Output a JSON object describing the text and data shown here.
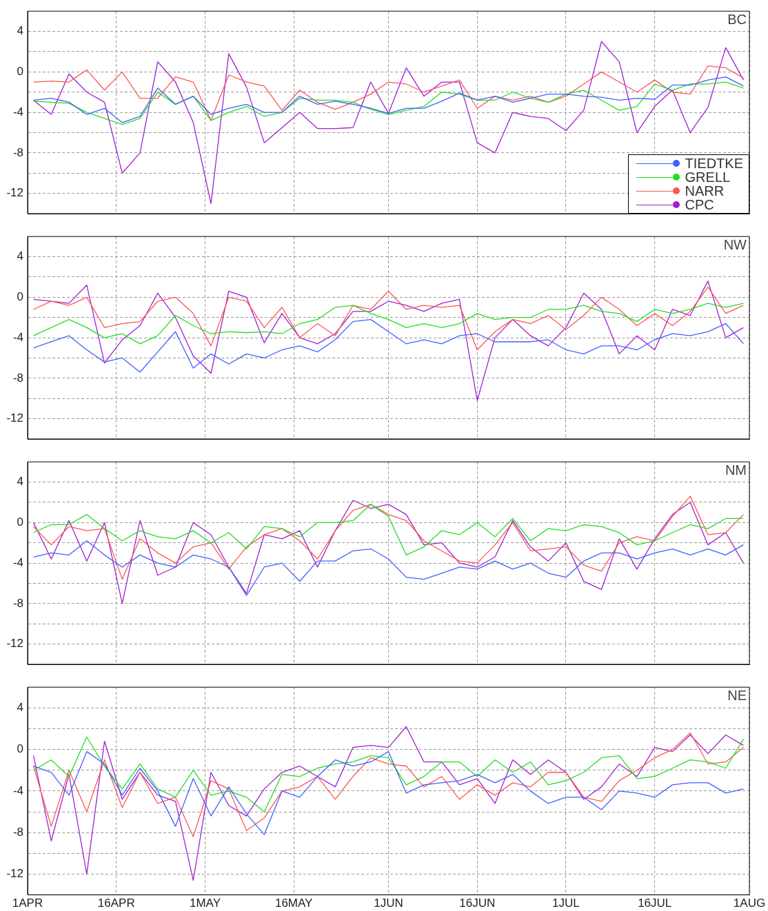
{
  "chart_data": [
    {
      "type": "line",
      "title": "BC",
      "legend": "bottom right",
      "grid": true,
      "tick_labels": "y",
      "ylim": [
        -14,
        6
      ],
      "yticks": [
        4,
        {
          "value": 2,
          "label": null
        },
        0,
        {
          "value": -2,
          "label": null
        },
        -4,
        {
          "value": -6,
          "label": null
        },
        -8,
        {
          "value": -10,
          "label": null
        },
        -12
      ],
      "xlim": [
        "--04-01",
        "--08-01"
      ],
      "xticks": [
        {
          "value": "--04-01",
          "label": "1APR"
        },
        {
          "value": "--04-16",
          "label": "16APR"
        },
        {
          "value": "--05-01",
          "label": "1MAY"
        },
        {
          "value": "--05-16",
          "label": "16MAY"
        },
        {
          "value": "--06-01",
          "label": "1JUN"
        },
        {
          "value": "--06-16",
          "label": "16JUN"
        },
        {
          "value": "--07-01",
          "label": "1JUL"
        },
        {
          "value": "--07-16",
          "label": "16JUL"
        },
        {
          "value": "--08-01",
          "label": "1AUG"
        }
      ],
      "x": [
        "--04-02",
        "--04-05",
        "--04-08",
        "--04-11",
        "--04-14",
        "--04-17",
        "--04-20",
        "--04-23",
        "--04-26",
        "--04-29",
        "--05-02",
        "--05-05",
        "--05-08",
        "--05-11",
        "--05-14",
        "--05-17",
        "--05-20",
        "--05-23",
        "--05-26",
        "--05-29",
        "--06-01",
        "--06-04",
        "--06-07",
        "--06-10",
        "--06-13",
        "--06-16",
        "--06-19",
        "--06-22",
        "--06-25",
        "--06-28",
        "--07-01",
        "--07-04",
        "--07-07",
        "--07-10",
        "--07-13",
        "--07-16",
        "--07-19",
        "--07-22",
        "--07-25",
        "--07-28",
        "--07-31"
      ],
      "series": [
        {
          "name": "TIEDTKE",
          "color": "#4060ff",
          "values": [
            -2.8,
            -2.6,
            -3.0,
            -4.2,
            -3.6,
            -5.0,
            -4.4,
            -1.6,
            -3.2,
            -2.4,
            -4.2,
            -3.6,
            -3.2,
            -4.0,
            -4.0,
            -2.4,
            -3.2,
            -2.9,
            -3.2,
            -3.6,
            -4.1,
            -3.6,
            -3.6,
            -2.9,
            -2.1,
            -2.8,
            -2.4,
            -3.0,
            -2.6,
            -2.2,
            -2.2,
            -2.4,
            -2.5,
            -2.8,
            -2.6,
            -2.7,
            -1.3,
            -1.3,
            -0.8,
            -0.5,
            -1.4
          ]
        },
        {
          "name": "GRELL",
          "color": "#22dd22",
          "values": [
            -2.9,
            -3.0,
            -3.1,
            -4.0,
            -4.6,
            -5.2,
            -4.6,
            -2.0,
            -3.2,
            -2.4,
            -4.8,
            -4.0,
            -3.4,
            -4.4,
            -4.0,
            -2.6,
            -2.8,
            -2.8,
            -3.0,
            -3.7,
            -4.2,
            -3.8,
            -3.4,
            -2.0,
            -2.2,
            -2.8,
            -2.8,
            -2.0,
            -2.6,
            -3.0,
            -2.2,
            -1.8,
            -2.8,
            -3.8,
            -3.4,
            -1.2,
            -1.8,
            -1.2,
            -1.2,
            -1.0,
            -1.6
          ]
        },
        {
          "name": "NARR",
          "color": "#ff5555",
          "values": [
            -1.0,
            -0.9,
            -1.0,
            0.2,
            -1.8,
            0.0,
            -2.6,
            -2.6,
            -0.5,
            -1.0,
            -4.8,
            -0.3,
            -1.0,
            -1.4,
            -3.8,
            -1.8,
            -3.0,
            -3.7,
            -3.0,
            -2.2,
            -1.0,
            -1.2,
            -2.0,
            -1.4,
            -0.8,
            -3.6,
            -2.4,
            -2.8,
            -2.4,
            -3.0,
            -2.4,
            -1.2,
            0.0,
            -1.0,
            -2.0,
            -0.8,
            -2.0,
            -2.2,
            0.6,
            0.4,
            -0.6
          ]
        },
        {
          "name": "CPC",
          "color": "#a020d0",
          "values": [
            -2.8,
            -4.2,
            -0.2,
            -2.0,
            -3.0,
            -10.0,
            -8.0,
            1.0,
            -1.0,
            -5.0,
            -13.0,
            1.8,
            -1.5,
            -7.0,
            -5.5,
            -4.0,
            -5.6,
            -5.6,
            -5.5,
            -1.0,
            -4.1,
            0.4,
            -2.4,
            -1.0,
            -1.0,
            -7.0,
            -8.0,
            -4.0,
            -4.4,
            -4.6,
            -5.8,
            -3.8,
            3.0,
            1.0,
            -6.0,
            -3.4,
            -1.8,
            -6.0,
            -3.5,
            2.4,
            -0.8
          ]
        }
      ]
    },
    {
      "type": "line",
      "title": "NW",
      "legend": false,
      "grid": true,
      "tick_labels": "y",
      "ylim": [
        -14,
        6
      ],
      "yticks": [
        4,
        {
          "value": 2,
          "label": null
        },
        0,
        {
          "value": -2,
          "label": null
        },
        -4,
        {
          "value": -6,
          "label": null
        },
        -8,
        {
          "value": -10,
          "label": null
        },
        -12
      ],
      "xlim": [
        "--04-01",
        "--08-01"
      ],
      "xticks": [
        {
          "value": "--04-01",
          "label": "1APR"
        },
        {
          "value": "--04-16",
          "label": "16APR"
        },
        {
          "value": "--05-01",
          "label": "1MAY"
        },
        {
          "value": "--05-16",
          "label": "16MAY"
        },
        {
          "value": "--06-01",
          "label": "1JUN"
        },
        {
          "value": "--06-16",
          "label": "16JUN"
        },
        {
          "value": "--07-01",
          "label": "1JUL"
        },
        {
          "value": "--07-16",
          "label": "16JUL"
        },
        {
          "value": "--08-01",
          "label": "1AUG"
        }
      ],
      "x": [
        "--04-02",
        "--04-05",
        "--04-08",
        "--04-11",
        "--04-14",
        "--04-17",
        "--04-20",
        "--04-23",
        "--04-26",
        "--04-29",
        "--05-02",
        "--05-05",
        "--05-08",
        "--05-11",
        "--05-14",
        "--05-17",
        "--05-20",
        "--05-23",
        "--05-26",
        "--05-29",
        "--06-01",
        "--06-04",
        "--06-07",
        "--06-10",
        "--06-13",
        "--06-16",
        "--06-19",
        "--06-22",
        "--06-25",
        "--06-28",
        "--07-01",
        "--07-04",
        "--07-07",
        "--07-10",
        "--07-13",
        "--07-16",
        "--07-19",
        "--07-22",
        "--07-25",
        "--07-28",
        "--07-31"
      ],
      "series": [
        {
          "color": "#4060ff",
          "values": [
            -5.0,
            -4.4,
            -3.8,
            -5.2,
            -6.4,
            -6.0,
            -7.4,
            -5.4,
            -3.4,
            -7.0,
            -5.6,
            -6.6,
            -5.6,
            -6.0,
            -5.2,
            -4.8,
            -5.4,
            -4.2,
            -2.4,
            -2.2,
            -3.4,
            -4.6,
            -4.2,
            -4.6,
            -3.8,
            -3.6,
            -4.4,
            -4.4,
            -4.4,
            -4.2,
            -5.2,
            -5.6,
            -4.8,
            -4.8,
            -5.2,
            -4.2,
            -3.6,
            -3.8,
            -3.4,
            -2.6,
            -4.6
          ]
        },
        {
          "color": "#22dd22",
          "values": [
            -3.8,
            -3.0,
            -2.2,
            -3.0,
            -4.0,
            -3.6,
            -4.6,
            -3.8,
            -1.8,
            -2.8,
            -3.6,
            -3.4,
            -3.5,
            -3.4,
            -3.6,
            -2.6,
            -2.2,
            -1.0,
            -0.8,
            -1.6,
            -2.2,
            -3.0,
            -2.6,
            -3.0,
            -2.6,
            -1.6,
            -2.2,
            -2.0,
            -2.0,
            -1.2,
            -1.2,
            -0.8,
            -1.4,
            -1.6,
            -2.4,
            -1.2,
            -1.6,
            -1.2,
            -0.6,
            -1.0,
            -0.6
          ]
        },
        {
          "color": "#ff5555",
          "values": [
            -1.2,
            -0.4,
            -0.8,
            0.0,
            -3.0,
            -2.6,
            -2.4,
            -0.4,
            0.0,
            -1.6,
            -4.8,
            0.0,
            -0.4,
            -3.0,
            -1.0,
            -4.0,
            -2.6,
            -3.8,
            -0.8,
            -1.2,
            0.6,
            -1.2,
            -0.8,
            -1.0,
            -0.8,
            -5.2,
            -3.4,
            -2.2,
            -2.6,
            -1.8,
            -3.2,
            -1.8,
            0.0,
            -1.2,
            -2.8,
            -1.6,
            -2.8,
            -1.4,
            1.0,
            -1.6,
            -0.8
          ]
        },
        {
          "color": "#a020d0",
          "values": [
            -0.2,
            -0.4,
            -0.6,
            1.2,
            -6.5,
            -4.2,
            -2.8,
            0.4,
            -2.0,
            -5.8,
            -7.5,
            0.6,
            0.0,
            -4.5,
            -1.6,
            -4.0,
            -4.6,
            -3.6,
            -1.4,
            -1.4,
            -0.4,
            -0.8,
            -1.4,
            -0.6,
            -0.2,
            -10.2,
            -4.0,
            -2.2,
            -3.8,
            -4.8,
            -3.0,
            0.4,
            -1.2,
            -5.6,
            -3.8,
            -5.2,
            -1.2,
            -1.8,
            1.6,
            -4.0,
            -3.0
          ]
        }
      ]
    },
    {
      "type": "line",
      "title": "NM",
      "legend": false,
      "grid": true,
      "tick_labels": "y",
      "ylim": [
        -14,
        6
      ],
      "yticks": [
        4,
        {
          "value": 2,
          "label": null
        },
        0,
        {
          "value": -2,
          "label": null
        },
        -4,
        {
          "value": -6,
          "label": null
        },
        -8,
        {
          "value": -10,
          "label": null
        },
        -12
      ],
      "xlim": [
        "--04-01",
        "--08-01"
      ],
      "xticks": [
        {
          "value": "--04-01",
          "label": "1APR"
        },
        {
          "value": "--04-16",
          "label": "16APR"
        },
        {
          "value": "--05-01",
          "label": "1MAY"
        },
        {
          "value": "--05-16",
          "label": "16MAY"
        },
        {
          "value": "--06-01",
          "label": "1JUN"
        },
        {
          "value": "--06-16",
          "label": "16JUN"
        },
        {
          "value": "--07-01",
          "label": "1JUL"
        },
        {
          "value": "--07-16",
          "label": "16JUL"
        },
        {
          "value": "--08-01",
          "label": "1AUG"
        }
      ],
      "x": [
        "--04-02",
        "--04-05",
        "--04-08",
        "--04-11",
        "--04-14",
        "--04-17",
        "--04-20",
        "--04-23",
        "--04-26",
        "--04-29",
        "--05-02",
        "--05-05",
        "--05-08",
        "--05-11",
        "--05-14",
        "--05-17",
        "--05-20",
        "--05-23",
        "--05-26",
        "--05-29",
        "--06-01",
        "--06-04",
        "--06-07",
        "--06-10",
        "--06-13",
        "--06-16",
        "--06-19",
        "--06-22",
        "--06-25",
        "--06-28",
        "--07-01",
        "--07-04",
        "--07-07",
        "--07-10",
        "--07-13",
        "--07-16",
        "--07-19",
        "--07-22",
        "--07-25",
        "--07-28",
        "--07-31"
      ],
      "series": [
        {
          "color": "#4060ff",
          "values": [
            -3.4,
            -3.0,
            -3.2,
            -1.8,
            -3.2,
            -4.4,
            -3.2,
            -4.0,
            -4.4,
            -3.2,
            -3.6,
            -4.4,
            -7.2,
            -4.4,
            -4.0,
            -5.8,
            -3.8,
            -3.8,
            -2.8,
            -2.6,
            -3.6,
            -5.4,
            -5.6,
            -5.0,
            -4.4,
            -4.6,
            -3.8,
            -4.6,
            -4.0,
            -5.0,
            -5.4,
            -3.8,
            -3.0,
            -3.0,
            -3.6,
            -3.0,
            -2.6,
            -3.2,
            -2.6,
            -3.2,
            -2.2
          ]
        },
        {
          "color": "#22dd22",
          "values": [
            -1.0,
            -0.2,
            -0.2,
            0.8,
            -0.6,
            -1.8,
            -0.8,
            -1.4,
            -1.6,
            -0.8,
            -2.0,
            -1.0,
            -2.6,
            -0.4,
            -0.6,
            -1.4,
            0.0,
            0.0,
            0.2,
            1.8,
            0.6,
            -3.2,
            -2.4,
            -0.8,
            -1.2,
            0.0,
            -1.4,
            0.4,
            -1.8,
            -0.6,
            -0.8,
            -0.2,
            -0.4,
            -1.0,
            -2.2,
            -1.8,
            -1.0,
            -0.2,
            -0.6,
            0.4,
            0.4
          ]
        },
        {
          "color": "#ff5555",
          "values": [
            -0.4,
            -2.2,
            -0.4,
            -0.8,
            -0.6,
            -5.6,
            -1.6,
            -3.0,
            -4.0,
            -2.4,
            -2.0,
            -4.6,
            -2.4,
            -1.2,
            -0.6,
            -1.8,
            -3.6,
            -0.8,
            1.2,
            1.8,
            0.8,
            0.2,
            -1.8,
            -2.8,
            -3.8,
            -4.0,
            -2.2,
            0.0,
            -2.8,
            -2.6,
            -2.4,
            -4.2,
            -4.8,
            -2.0,
            -1.4,
            -1.8,
            0.6,
            2.6,
            -1.2,
            -1.0,
            0.8
          ]
        },
        {
          "color": "#a020d0",
          "values": [
            0.0,
            -3.6,
            0.2,
            -3.8,
            0.0,
            -8.0,
            0.2,
            -5.2,
            -4.4,
            0.0,
            -1.2,
            -4.4,
            -7.0,
            -1.2,
            -1.6,
            -0.8,
            -4.4,
            -0.8,
            2.2,
            1.4,
            1.8,
            0.8,
            -2.2,
            -2.0,
            -4.0,
            -4.4,
            -3.4,
            0.2,
            -2.4,
            -3.8,
            -2.0,
            -5.8,
            -6.6,
            -1.6,
            -4.6,
            -1.6,
            0.8,
            2.0,
            -2.2,
            -1.0,
            -4.0
          ]
        }
      ]
    },
    {
      "type": "line",
      "title": "NE",
      "legend": false,
      "grid": true,
      "ylim": [
        -14,
        6
      ],
      "yticks": [
        4,
        {
          "value": 2,
          "label": null
        },
        0,
        {
          "value": -2,
          "label": null
        },
        -4,
        {
          "value": -6,
          "label": null
        },
        -8,
        {
          "value": -10,
          "label": null
        },
        -12
      ],
      "xlim": [
        "--04-01",
        "--08-01"
      ],
      "xticks": [
        {
          "value": "--04-01",
          "label": "1APR"
        },
        {
          "value": "--04-16",
          "label": "16APR"
        },
        {
          "value": "--05-01",
          "label": "1MAY"
        },
        {
          "value": "--05-16",
          "label": "16MAY"
        },
        {
          "value": "--06-01",
          "label": "1JUN"
        },
        {
          "value": "--06-16",
          "label": "16JUN"
        },
        {
          "value": "--07-01",
          "label": "1JUL"
        },
        {
          "value": "--07-16",
          "label": "16JUL"
        },
        {
          "value": "--08-01",
          "label": "1AUG"
        }
      ],
      "x": [
        "--04-02",
        "--04-05",
        "--04-08",
        "--04-11",
        "--04-14",
        "--04-17",
        "--04-20",
        "--04-23",
        "--04-26",
        "--04-29",
        "--05-02",
        "--05-05",
        "--05-08",
        "--05-11",
        "--05-14",
        "--05-17",
        "--05-20",
        "--05-23",
        "--05-26",
        "--05-29",
        "--06-01",
        "--06-04",
        "--06-07",
        "--06-10",
        "--06-13",
        "--06-16",
        "--06-19",
        "--06-22",
        "--06-25",
        "--06-28",
        "--07-01",
        "--07-04",
        "--07-07",
        "--07-10",
        "--07-13",
        "--07-16",
        "--07-19",
        "--07-22",
        "--07-25",
        "--07-28",
        "--07-31"
      ],
      "series": [
        {
          "color": "#4060ff",
          "values": [
            -1.6,
            -2.2,
            -4.4,
            -0.2,
            -1.4,
            -4.4,
            -1.8,
            -4.0,
            -7.4,
            -2.8,
            -6.4,
            -3.6,
            -6.2,
            -8.2,
            -4.0,
            -4.6,
            -2.6,
            -1.0,
            -1.6,
            -1.2,
            -0.2,
            -4.2,
            -3.4,
            -3.2,
            -3.0,
            -2.4,
            -3.2,
            -2.4,
            -4.0,
            -5.2,
            -4.6,
            -4.6,
            -5.8,
            -4.0,
            -4.2,
            -4.6,
            -3.4,
            -3.2,
            -3.2,
            -4.2,
            -3.8
          ]
        },
        {
          "color": "#22dd22",
          "values": [
            -2.0,
            -1.0,
            -2.6,
            1.2,
            -1.6,
            -3.8,
            -1.4,
            -3.8,
            -4.6,
            -2.0,
            -4.4,
            -4.0,
            -4.6,
            -6.0,
            -2.4,
            -2.6,
            -1.8,
            -1.4,
            -1.2,
            -0.6,
            -0.8,
            -3.4,
            -2.6,
            -1.2,
            -1.2,
            -2.6,
            -1.0,
            -2.2,
            -1.2,
            -3.4,
            -3.0,
            -2.2,
            -0.8,
            -0.6,
            -2.8,
            -2.6,
            -1.8,
            -1.0,
            -1.2,
            -1.8,
            1.0
          ]
        },
        {
          "color": "#ff5555",
          "values": [
            -1.6,
            -7.4,
            -2.0,
            -6.0,
            -1.0,
            -5.6,
            -2.2,
            -5.2,
            -4.6,
            -8.4,
            -3.0,
            -3.8,
            -7.8,
            -6.6,
            -4.0,
            -3.6,
            -2.6,
            -4.8,
            -2.6,
            -0.8,
            -1.4,
            -1.6,
            -3.6,
            -2.6,
            -4.8,
            -3.4,
            -4.4,
            -3.2,
            -3.6,
            -2.2,
            -2.2,
            -4.6,
            -5.0,
            -3.0,
            -2.0,
            -0.8,
            0.0,
            1.6,
            -1.4,
            -1.2,
            0.2
          ]
        },
        {
          "color": "#a020d0",
          "values": [
            -0.6,
            -8.8,
            -2.4,
            -12.0,
            0.8,
            -4.8,
            -2.2,
            -4.4,
            -5.0,
            -12.6,
            -2.2,
            -5.4,
            -6.4,
            -3.8,
            -2.2,
            -1.6,
            -2.6,
            -3.6,
            0.2,
            0.4,
            0.2,
            2.2,
            -1.2,
            -1.2,
            -3.4,
            -2.8,
            -5.2,
            -1.0,
            -2.4,
            -1.0,
            -2.2,
            -4.8,
            -3.6,
            -1.4,
            -2.6,
            0.2,
            -0.2,
            1.4,
            -0.4,
            1.4,
            0.4
          ]
        }
      ]
    }
  ]
}
